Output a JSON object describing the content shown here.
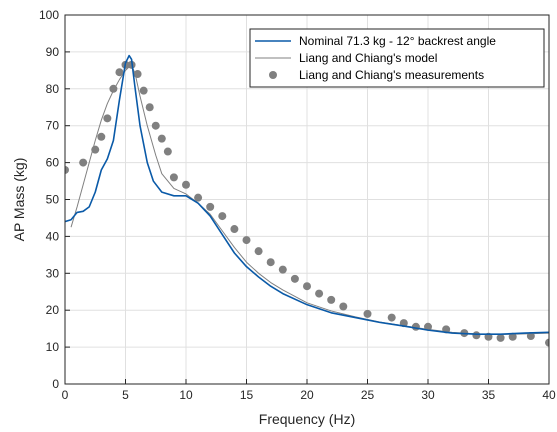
{
  "chart_data": {
    "type": "line",
    "xlabel": "Frequency (Hz)",
    "ylabel": "AP Mass (kg)",
    "xlim": [
      0,
      40
    ],
    "ylim": [
      0,
      100
    ],
    "xticks": [
      "0",
      "5",
      "10",
      "15",
      "20",
      "25",
      "30",
      "35",
      "40"
    ],
    "yticks": [
      "0",
      "10",
      "20",
      "30",
      "40",
      "50",
      "60",
      "70",
      "80",
      "90",
      "100"
    ],
    "grid": true,
    "legend_position": "top-right",
    "series": [
      {
        "name": "Nominal 71.3 kg - 12° backrest angle",
        "kind": "line",
        "color": "#0a5aa8",
        "x": [
          0,
          0.5,
          1,
          1.5,
          2,
          2.5,
          3,
          3.5,
          4,
          4.5,
          5,
          5.3,
          5.5,
          5.8,
          6.2,
          6.8,
          7.3,
          8,
          9,
          10,
          11,
          12,
          13,
          14,
          15,
          16,
          17,
          18,
          20,
          22,
          24,
          26,
          28,
          30,
          32,
          34,
          36,
          38,
          40
        ],
        "y": [
          44,
          44.5,
          46.5,
          46.8,
          48,
          52,
          58,
          61,
          66,
          77,
          87,
          89,
          88,
          80,
          70,
          60,
          55,
          52,
          51,
          51,
          49,
          45.5,
          40.5,
          35.5,
          31.8,
          29,
          26.5,
          24.5,
          21.5,
          19.3,
          18,
          16.7,
          15.7,
          14.6,
          13.8,
          13.5,
          13.5,
          13.8,
          14
        ]
      },
      {
        "name": "Liang and Chiang's model",
        "kind": "line",
        "color": "#808080",
        "x": [
          0.5,
          1,
          1.5,
          2,
          2.5,
          3,
          3.5,
          4,
          4.5,
          5,
          5.5,
          5.8,
          6.2,
          6.8,
          7.5,
          8,
          9,
          10,
          11,
          12,
          13,
          14,
          15,
          16,
          17,
          18,
          20,
          22,
          24,
          26,
          28,
          30,
          32,
          34,
          36,
          38,
          40
        ],
        "y": [
          42.5,
          48,
          54,
          60,
          66,
          71.5,
          76,
          79.5,
          82.5,
          85,
          86.5,
          84,
          78,
          70,
          62,
          57,
          53,
          51.5,
          49,
          46,
          41.5,
          37,
          33,
          30,
          27.5,
          25.5,
          22,
          19.8,
          18.2,
          16.8,
          15.8,
          14.8,
          14,
          13.6,
          13.4,
          13.6,
          13.8
        ]
      },
      {
        "name": "Liang and Chiang's measurements",
        "kind": "scatter",
        "color": "#808080",
        "x": [
          0,
          1.5,
          2.5,
          3,
          3.5,
          4,
          4.5,
          5,
          5.5,
          6,
          6.5,
          7,
          7.5,
          8,
          8.5,
          9,
          10,
          11,
          12,
          13,
          14,
          15,
          16,
          17,
          18,
          19,
          20,
          21,
          22,
          23,
          25,
          27,
          28,
          29,
          30,
          31.5,
          33,
          34,
          35,
          36,
          37,
          38.5,
          40
        ],
        "y": [
          58,
          60,
          63.5,
          67,
          72,
          80,
          84.5,
          86.5,
          86.5,
          84,
          79.5,
          75,
          70,
          66.5,
          63,
          56,
          54,
          50.5,
          48,
          45.5,
          42,
          39,
          36,
          33,
          31,
          28.5,
          26.5,
          24.5,
          22.8,
          21,
          19,
          18,
          16.5,
          15.5,
          15.5,
          14.8,
          13.8,
          13.2,
          12.8,
          12.5,
          12.8,
          13,
          11.2
        ]
      }
    ]
  }
}
